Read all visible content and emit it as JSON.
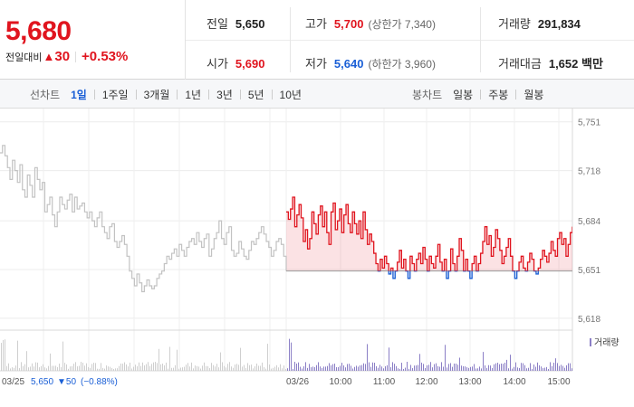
{
  "stock": {
    "current_price": "5,680",
    "change_label": "전일대비",
    "change_arrow": "▲",
    "change_amount": "30",
    "change_pct": "+0.53%"
  },
  "summary": {
    "prev_close_label": "전일",
    "prev_close": "5,650",
    "open_label": "시가",
    "open": "5,690",
    "high_label": "고가",
    "high": "5,700",
    "upper_limit": "(상한가 7,340)",
    "low_label": "저가",
    "low": "5,640",
    "lower_limit": "(하한가 3,960)",
    "volume_label": "거래량",
    "volume": "291,834",
    "amount_label": "거래대금",
    "amount": "1,652 백만"
  },
  "line_tabs": {
    "title": "선차트",
    "items": [
      "1일",
      "1주일",
      "3개월",
      "1년",
      "3년",
      "5년",
      "10년"
    ],
    "active": "1일"
  },
  "candle_tabs": {
    "title": "봉차트",
    "items": [
      "일봉",
      "주봉",
      "월봉"
    ]
  },
  "colors": {
    "up": "#e0141e",
    "down": "#1a5fd6",
    "prev_day_line": "#c2c2c2",
    "volume_prev": "#cfcfcf",
    "volume_today": "#8b7fc6"
  },
  "chart_data": {
    "type": "line",
    "ylim": [
      5610,
      5760
    ],
    "y_ticks": [
      "5,751",
      "5,718",
      "5,684",
      "5,651",
      "5,618"
    ],
    "x_ticks": [
      "03/26",
      "10:00",
      "11:00",
      "12:00",
      "13:00",
      "14:00",
      "15:00"
    ],
    "baseline": 5650,
    "legend": [
      "거래량"
    ],
    "prev_day_caption": {
      "date": "03/25",
      "close": "5,650",
      "change": "▼50",
      "pct": "(−0.88%)"
    },
    "series": [
      {
        "name": "03/25",
        "values": [
          5730,
          5735,
          5728,
          5720,
          5712,
          5725,
          5718,
          5710,
          5722,
          5705,
          5700,
          5715,
          5708,
          5700,
          5720,
          5712,
          5705,
          5710,
          5690,
          5695,
          5700,
          5688,
          5680,
          5690,
          5700,
          5695,
          5692,
          5698,
          5702,
          5690,
          5700,
          5692,
          5694,
          5696,
          5690,
          5686,
          5690,
          5684,
          5680,
          5686,
          5690,
          5680,
          5676,
          5672,
          5680,
          5682,
          5670,
          5666,
          5670,
          5674,
          5668,
          5660,
          5650,
          5645,
          5640,
          5648,
          5642,
          5636,
          5640,
          5644,
          5640,
          5638,
          5640,
          5645,
          5648,
          5650,
          5655,
          5660,
          5658,
          5662,
          5665,
          5660,
          5668,
          5664,
          5660,
          5666,
          5670,
          5672,
          5668,
          5676,
          5670,
          5666,
          5672,
          5675,
          5660,
          5665,
          5672,
          5676,
          5684,
          5672,
          5668,
          5676,
          5680,
          5664,
          5660,
          5662,
          5670,
          5665,
          5660,
          5658,
          5664,
          5670,
          5668,
          5672,
          5676,
          5680,
          5675,
          5670,
          5666,
          5660,
          5664,
          5670,
          5672,
          5668,
          5660,
          5650
        ]
      },
      {
        "name": "03/26",
        "values": [
          5690,
          5685,
          5692,
          5700,
          5680,
          5688,
          5695,
          5686,
          5670,
          5678,
          5665,
          5672,
          5690,
          5682,
          5675,
          5688,
          5694,
          5680,
          5690,
          5676,
          5668,
          5690,
          5696,
          5678,
          5684,
          5692,
          5676,
          5688,
          5695,
          5682,
          5676,
          5690,
          5682,
          5675,
          5684,
          5672,
          5690,
          5678,
          5668,
          5675,
          5670,
          5662,
          5655,
          5650,
          5658,
          5652,
          5660,
          5655,
          5648,
          5652,
          5645,
          5650,
          5656,
          5664,
          5652,
          5658,
          5650,
          5645,
          5660,
          5655,
          5650,
          5658,
          5662,
          5655,
          5666,
          5658,
          5650,
          5660,
          5655,
          5652,
          5660,
          5668,
          5656,
          5650,
          5658,
          5645,
          5650,
          5665,
          5655,
          5650,
          5660,
          5672,
          5664,
          5650,
          5658,
          5650,
          5645,
          5655,
          5660,
          5650,
          5655,
          5662,
          5670,
          5680,
          5668,
          5674,
          5660,
          5666,
          5678,
          5672,
          5664,
          5655,
          5660,
          5666,
          5672,
          5660,
          5650,
          5645,
          5650,
          5656,
          5660,
          5652,
          5650,
          5656,
          5662,
          5658,
          5650,
          5648,
          5652,
          5658,
          5664,
          5660,
          5656,
          5662,
          5670,
          5664,
          5660,
          5672,
          5676,
          5668,
          5672,
          5660,
          5668,
          5676,
          5680
        ]
      }
    ]
  }
}
